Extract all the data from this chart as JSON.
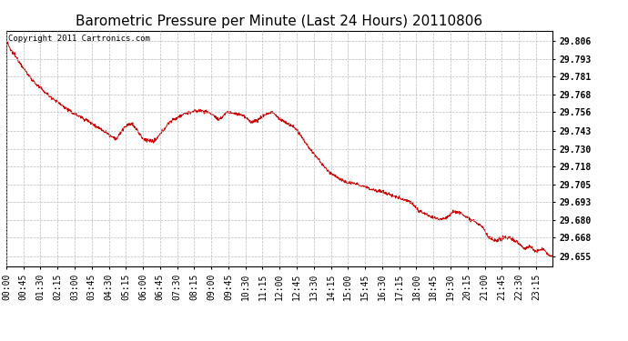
{
  "title": "Barometric Pressure per Minute (Last 24 Hours) 20110806",
  "copyright": "Copyright 2011 Cartronics.com",
  "line_color": "#cc0000",
  "bg_color": "#ffffff",
  "grid_color": "#bbbbbb",
  "yticks": [
    29.655,
    29.668,
    29.68,
    29.693,
    29.705,
    29.718,
    29.73,
    29.743,
    29.756,
    29.768,
    29.781,
    29.793,
    29.806
  ],
  "ylim": [
    29.648,
    29.813
  ],
  "xtick_labels": [
    "00:00",
    "00:45",
    "01:30",
    "02:15",
    "03:00",
    "03:45",
    "04:30",
    "05:15",
    "06:00",
    "06:45",
    "07:30",
    "08:15",
    "09:00",
    "09:45",
    "10:30",
    "11:15",
    "12:00",
    "12:45",
    "13:30",
    "14:15",
    "15:00",
    "15:45",
    "16:30",
    "17:15",
    "18:00",
    "18:45",
    "19:30",
    "20:15",
    "21:00",
    "21:45",
    "22:30",
    "23:15"
  ],
  "title_fontsize": 11,
  "tick_fontsize": 7,
  "copyright_fontsize": 6.5,
  "waypoints_x": [
    0,
    10,
    30,
    55,
    80,
    110,
    140,
    170,
    200,
    225,
    255,
    290,
    310,
    330,
    345,
    360,
    390,
    430,
    470,
    510,
    530,
    545,
    560,
    580,
    600,
    620,
    645,
    660,
    680,
    700,
    720,
    760,
    800,
    845,
    890,
    930,
    960,
    990,
    1020,
    1045,
    1065,
    1075,
    1085,
    1100,
    1120,
    1140,
    1160,
    1175,
    1190,
    1215,
    1230,
    1255,
    1270,
    1290,
    1310,
    1325,
    1345,
    1365,
    1380,
    1395,
    1415,
    1430,
    1439
  ],
  "waypoints_y": [
    29.806,
    29.8,
    29.793,
    29.783,
    29.775,
    29.768,
    29.762,
    29.756,
    29.752,
    29.748,
    29.743,
    29.737,
    29.745,
    29.748,
    29.743,
    29.737,
    29.735,
    29.749,
    29.755,
    29.757,
    29.756,
    29.754,
    29.75,
    29.756,
    29.755,
    29.754,
    29.749,
    29.75,
    29.754,
    29.756,
    29.751,
    29.745,
    29.73,
    29.715,
    29.707,
    29.705,
    29.702,
    29.7,
    29.697,
    29.695,
    29.693,
    29.69,
    29.687,
    29.685,
    29.682,
    29.681,
    29.682,
    29.686,
    29.686,
    29.682,
    29.68,
    29.675,
    29.668,
    29.665,
    29.668,
    29.668,
    29.665,
    29.66,
    29.662,
    29.658,
    29.66,
    29.655,
    29.655
  ]
}
